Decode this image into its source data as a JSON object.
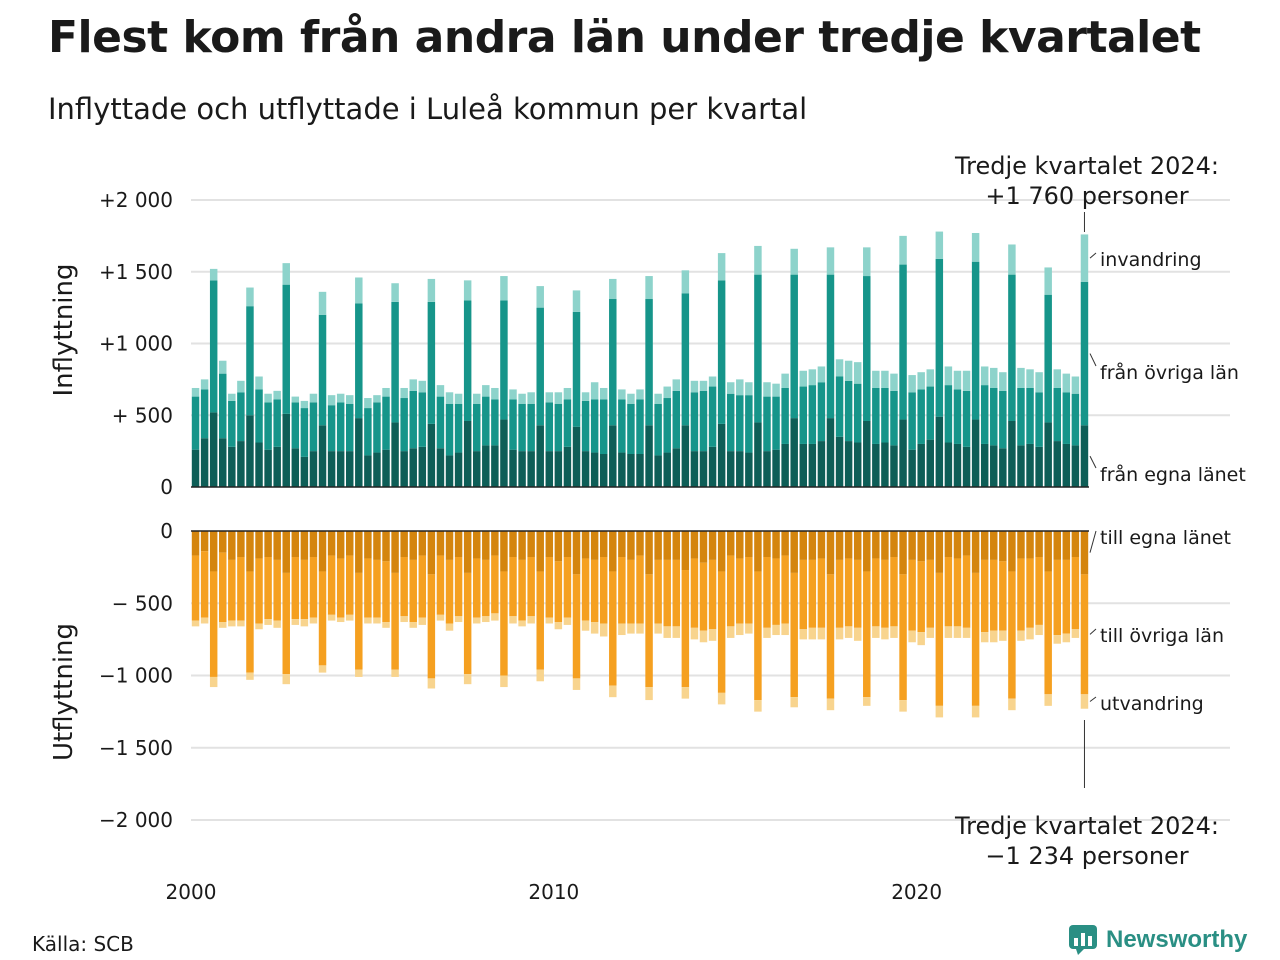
{
  "title": "Flest kom från andra län under tredje kvartalet",
  "subtitle": "Inflyttade och utflyttade i Luleå kommun per kvartal",
  "source": "Källa: SCB",
  "brand": "Newsworthy",
  "colors": {
    "in_own": "#0e5e57",
    "in_other": "#16958a",
    "in_immig": "#8dd3cb",
    "out_own": "#d4850e",
    "out_other": "#f5a020",
    "out_emig": "#f8d48e",
    "grid": "#e2e2e2",
    "brand": "#2a8f84"
  },
  "chart_data": {
    "type": "bar",
    "stacked": true,
    "quarters_start": "2000-Q1",
    "quarters_end": "2024-Q3",
    "x_ticks": [
      "2000",
      "2010",
      "2020"
    ],
    "top_panel": {
      "ylabel": "Inflyttning",
      "ylim": [
        0,
        2000
      ],
      "yticks": [
        {
          "value": 2000,
          "label": "+2 000"
        },
        {
          "value": 1500,
          "label": "+1 500"
        },
        {
          "value": 1000,
          "label": "+1 000"
        },
        {
          "value": 500,
          "label": "+  500"
        },
        {
          "value": 0,
          "label": "0"
        }
      ],
      "series_labels": [
        "invandring",
        "från övriga län",
        "från egna länet"
      ],
      "annotation": [
        "Tredje kvartalet 2024:",
        "+1 760 personer"
      ],
      "total_last": 1760
    },
    "bottom_panel": {
      "ylabel": "Utflyttning",
      "ylim": [
        -2000,
        0
      ],
      "yticks": [
        {
          "value": 0,
          "label": "0"
        },
        {
          "value": -500,
          "label": "−  500"
        },
        {
          "value": -1000,
          "label": "−1 000"
        },
        {
          "value": -1500,
          "label": "−1 500"
        },
        {
          "value": -2000,
          "label": "−2 000"
        }
      ],
      "series_labels": [
        "till egna länet",
        "till övriga län",
        "utvandring"
      ],
      "annotation": [
        "Tredje kvartalet 2024:",
        "−1 234 personer"
      ],
      "total_last": -1234
    },
    "series_in": [
      {
        "name": "från egna länet",
        "values": [
          260,
          340,
          520,
          340,
          280,
          320,
          500,
          310,
          260,
          280,
          510,
          270,
          210,
          250,
          430,
          250,
          250,
          250,
          480,
          220,
          240,
          260,
          450,
          250,
          270,
          280,
          440,
          270,
          220,
          240,
          460,
          250,
          290,
          290,
          470,
          260,
          250,
          250,
          430,
          250,
          250,
          280,
          420,
          250,
          240,
          230,
          430,
          240,
          230,
          230,
          430,
          220,
          240,
          270,
          430,
          250,
          250,
          280,
          440,
          250,
          250,
          240,
          450,
          250,
          260,
          300,
          480,
          300,
          300,
          320,
          480,
          350,
          320,
          310,
          460,
          300,
          310,
          290,
          470,
          260,
          300,
          330,
          490,
          310,
          300,
          280,
          470,
          300,
          290,
          270,
          460,
          290,
          300,
          280,
          450,
          320,
          300,
          290,
          430
        ]
      },
      {
        "name": "från övriga län",
        "values": [
          370,
          340,
          920,
          450,
          320,
          340,
          760,
          370,
          330,
          330,
          900,
          320,
          340,
          340,
          770,
          320,
          340,
          330,
          800,
          330,
          350,
          370,
          840,
          370,
          400,
          380,
          850,
          360,
          360,
          340,
          840,
          330,
          340,
          320,
          830,
          350,
          330,
          330,
          820,
          340,
          330,
          330,
          800,
          350,
          370,
          380,
          880,
          370,
          350,
          380,
          880,
          360,
          380,
          400,
          920,
          410,
          420,
          420,
          1000,
          400,
          390,
          400,
          1030,
          380,
          370,
          390,
          1000,
          400,
          410,
          410,
          1000,
          420,
          420,
          410,
          1010,
          390,
          380,
          380,
          1080,
          400,
          380,
          370,
          1100,
          400,
          380,
          390,
          1100,
          410,
          400,
          400,
          1020,
          400,
          390,
          380,
          890,
          370,
          360,
          360,
          1000
        ]
      },
      {
        "name": "invandring",
        "values": [
          60,
          70,
          80,
          90,
          50,
          80,
          130,
          90,
          60,
          60,
          150,
          40,
          50,
          60,
          160,
          70,
          60,
          60,
          180,
          70,
          50,
          60,
          130,
          70,
          80,
          80,
          160,
          80,
          80,
          70,
          140,
          70,
          80,
          80,
          170,
          70,
          70,
          80,
          150,
          70,
          80,
          80,
          150,
          60,
          120,
          80,
          140,
          70,
          70,
          70,
          160,
          70,
          80,
          80,
          160,
          80,
          70,
          70,
          190,
          80,
          110,
          90,
          200,
          100,
          90,
          100,
          180,
          110,
          110,
          110,
          190,
          120,
          140,
          150,
          200,
          120,
          120,
          120,
          200,
          120,
          120,
          120,
          190,
          130,
          130,
          140,
          200,
          130,
          140,
          130,
          210,
          140,
          130,
          140,
          190,
          130,
          130,
          120,
          330
        ]
      }
    ],
    "series_out": [
      {
        "name": "till egna länet",
        "values": [
          170,
          140,
          280,
          150,
          200,
          180,
          280,
          190,
          180,
          200,
          290,
          180,
          200,
          180,
          280,
          170,
          190,
          170,
          290,
          190,
          200,
          210,
          290,
          180,
          200,
          170,
          300,
          170,
          200,
          180,
          290,
          190,
          200,
          170,
          280,
          180,
          200,
          180,
          280,
          180,
          210,
          180,
          300,
          190,
          200,
          180,
          280,
          180,
          200,
          170,
          300,
          200,
          200,
          200,
          270,
          190,
          220,
          200,
          280,
          170,
          190,
          180,
          280,
          180,
          190,
          170,
          290,
          200,
          200,
          190,
          300,
          200,
          190,
          200,
          280,
          190,
          200,
          180,
          300,
          200,
          210,
          200,
          290,
          180,
          190,
          170,
          290,
          200,
          200,
          210,
          280,
          190,
          190,
          180,
          280,
          200,
          200,
          180,
          300
        ]
      },
      {
        "name": "till övriga län",
        "values": [
          450,
          460,
          730,
          480,
          420,
          440,
          700,
          450,
          430,
          420,
          700,
          430,
          410,
          420,
          650,
          410,
          410,
          410,
          670,
          410,
          400,
          420,
          670,
          410,
          430,
          430,
          720,
          410,
          440,
          410,
          700,
          410,
          390,
          400,
          720,
          410,
          420,
          410,
          680,
          420,
          420,
          420,
          720,
          430,
          430,
          460,
          790,
          460,
          440,
          470,
          780,
          440,
          460,
          460,
          810,
          480,
          470,
          480,
          840,
          490,
          450,
          460,
          890,
          490,
          460,
          470,
          860,
          480,
          470,
          480,
          860,
          470,
          470,
          470,
          870,
          470,
          470,
          480,
          870,
          490,
          490,
          470,
          920,
          480,
          470,
          500,
          920,
          500,
          490,
          480,
          880,
          500,
          480,
          470,
          850,
          520,
          510,
          500,
          830
        ]
      },
      {
        "name": "utvandring",
        "values": [
          40,
          40,
          70,
          40,
          40,
          40,
          50,
          40,
          40,
          50,
          70,
          40,
          50,
          40,
          50,
          40,
          30,
          40,
          50,
          40,
          40,
          40,
          50,
          40,
          40,
          50,
          70,
          40,
          50,
          40,
          70,
          40,
          40,
          50,
          80,
          50,
          40,
          50,
          80,
          40,
          50,
          50,
          80,
          70,
          80,
          90,
          80,
          80,
          70,
          70,
          90,
          70,
          80,
          80,
          80,
          80,
          80,
          80,
          80,
          80,
          80,
          70,
          80,
          70,
          70,
          80,
          70,
          70,
          80,
          80,
          80,
          80,
          80,
          90,
          60,
          80,
          80,
          80,
          80,
          80,
          90,
          70,
          80,
          80,
          80,
          70,
          80,
          70,
          80,
          70,
          80,
          70,
          80,
          70,
          80,
          60,
          60,
          60,
          100
        ]
      }
    ]
  }
}
